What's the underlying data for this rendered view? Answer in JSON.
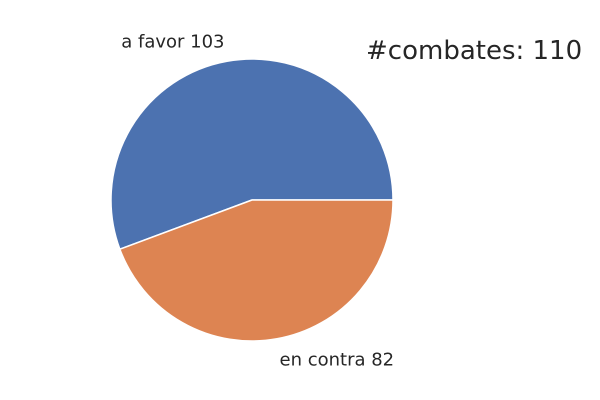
{
  "chart_data": {
    "type": "pie",
    "annotation": "#combates: 110",
    "slices": [
      {
        "label": "a favor 103",
        "value": 103,
        "color": "#4c72b0"
      },
      {
        "label": "en contra 82",
        "value": 82,
        "color": "#dd8452"
      }
    ],
    "start_angle_deg": 0,
    "direction": "counterclockwise",
    "edge_color": "#ffffff"
  }
}
